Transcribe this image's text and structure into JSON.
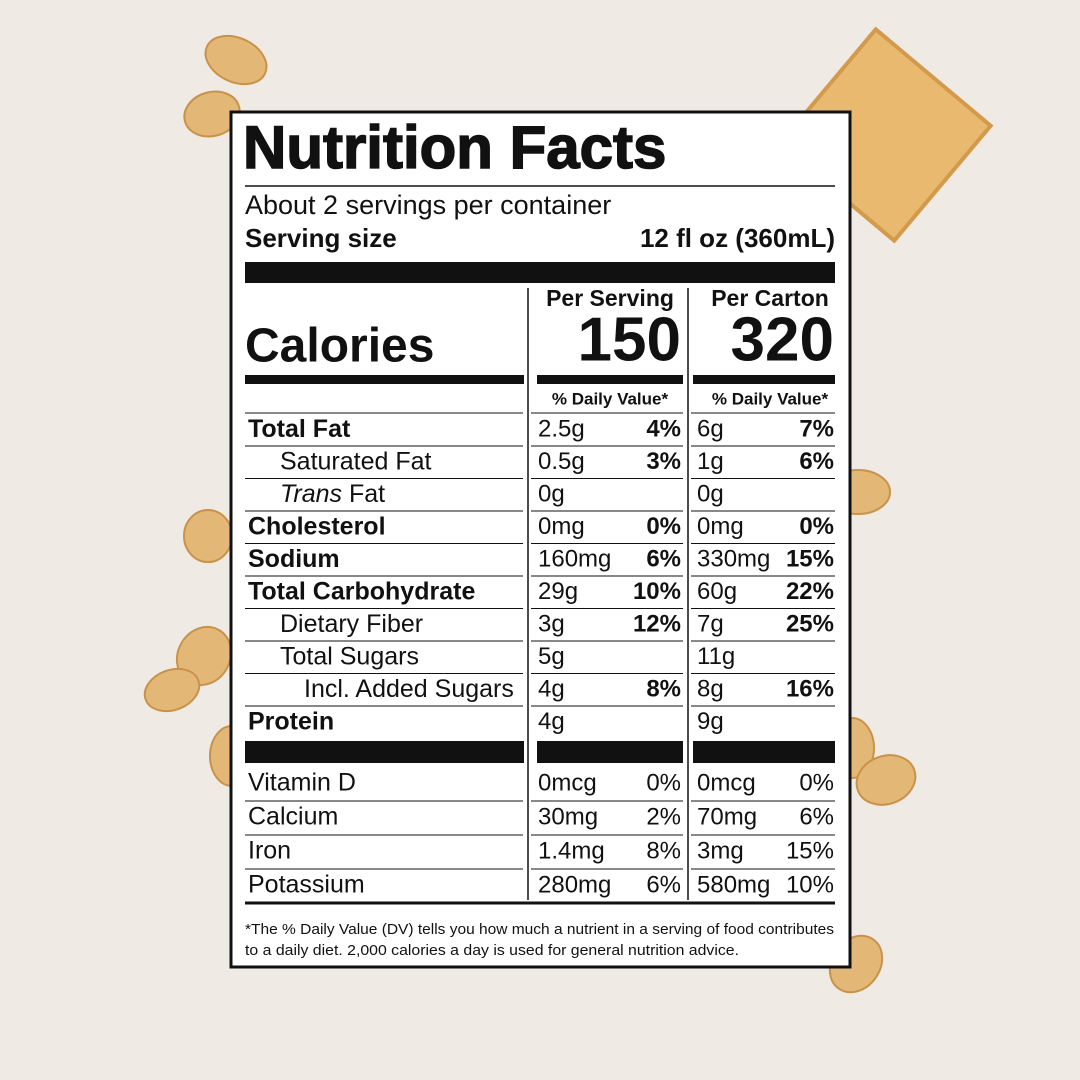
{
  "header": {
    "title": "Nutrition Facts",
    "servings": "About 2 servings per container",
    "serving_size_label": "Serving size",
    "serving_size_value": "12 fl oz (360mL)"
  },
  "calories_label": "Calories",
  "columns": [
    {
      "heading": "Per Serving",
      "calories": "150",
      "dv_heading": "% Daily Value*"
    },
    {
      "heading": "Per Carton",
      "calories": "320",
      "dv_heading": "% Daily Value*"
    }
  ],
  "nutrients": [
    {
      "name": "Total Fat",
      "bold": true,
      "indent": 0,
      "values": [
        [
          "2.5g",
          "4%"
        ],
        [
          "6g",
          "7%"
        ]
      ]
    },
    {
      "name": "Saturated Fat",
      "bold": false,
      "indent": 1,
      "values": [
        [
          "0.5g",
          "3%"
        ],
        [
          "1g",
          "6%"
        ]
      ]
    },
    {
      "name_italic": "Trans",
      "name": " Fat",
      "bold": false,
      "indent": 1,
      "values": [
        [
          "0g"
        ],
        [
          "0g"
        ]
      ]
    },
    {
      "name": "Cholesterol",
      "bold": true,
      "indent": 0,
      "values": [
        [
          "0mg",
          "0%"
        ],
        [
          "0mg",
          "0%"
        ]
      ]
    },
    {
      "name": "Sodium",
      "bold": true,
      "indent": 0,
      "values": [
        [
          "160mg",
          "6%"
        ],
        [
          "330mg",
          "15%"
        ]
      ]
    },
    {
      "name": "Total Carbohydrate",
      "bold": true,
      "indent": 0,
      "values": [
        [
          "29g",
          "10%"
        ],
        [
          "60g",
          "22%"
        ]
      ]
    },
    {
      "name": "Dietary Fiber",
      "bold": false,
      "indent": 1,
      "values": [
        [
          "3g",
          "12%"
        ],
        [
          "7g",
          "25%"
        ]
      ]
    },
    {
      "name": "Total Sugars",
      "bold": false,
      "indent": 1,
      "values": [
        [
          "5g"
        ],
        [
          "11g"
        ]
      ]
    },
    {
      "name": "Incl. Added Sugars",
      "bold": false,
      "indent": 2,
      "values": [
        [
          "4g",
          "8%"
        ],
        [
          "8g",
          "16%"
        ]
      ]
    },
    {
      "name": "Protein",
      "bold": true,
      "indent": 0,
      "values": [
        [
          "4g"
        ],
        [
          "9g"
        ]
      ]
    }
  ],
  "vitamins": [
    {
      "name": "Vitamin D",
      "values": [
        [
          "0mcg",
          "0%"
        ],
        [
          "0mcg",
          "0%"
        ]
      ]
    },
    {
      "name": "Calcium",
      "values": [
        [
          "30mg",
          "2%"
        ],
        [
          "70mg",
          "6%"
        ]
      ]
    },
    {
      "name": "Iron",
      "values": [
        [
          "1.4mg",
          "8%"
        ],
        [
          "3mg",
          "15%"
        ]
      ]
    },
    {
      "name": "Potassium",
      "values": [
        [
          "280mg",
          "6%"
        ],
        [
          "580mg",
          "10%"
        ]
      ]
    }
  ],
  "footnote": [
    "*The % Daily Value (DV) tells you how much a nutrient in a serving of food contributes",
    "to a daily diet. 2,000 calories a day is used for general nutrition advice."
  ]
}
